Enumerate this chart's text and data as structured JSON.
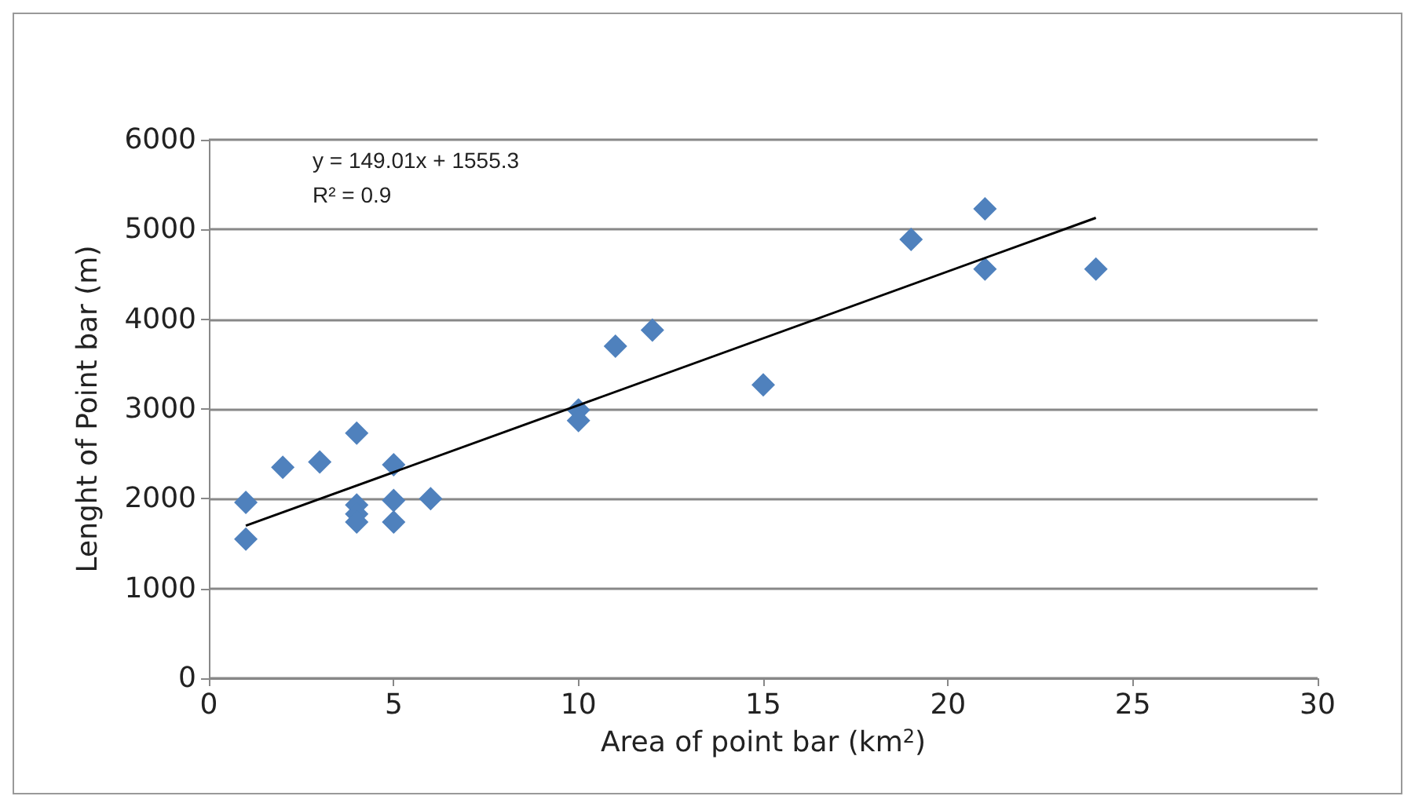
{
  "chart_data": {
    "type": "scatter",
    "xlabel": "Area of point bar (km$^{2}$)",
    "ylabel": "Lenght of Point bar (m)",
    "annotations": [
      "y = 149.01x + 1555.3",
      "R² = 0.9"
    ],
    "xlim": [
      0,
      30
    ],
    "xticks": [
      0,
      5,
      10,
      15,
      20,
      25,
      30
    ],
    "ylim": [
      0,
      6000
    ],
    "yticks": [
      0,
      1000,
      2000,
      3000,
      4000,
      5000,
      6000
    ],
    "grid": "y",
    "marker": "diamond",
    "series": [
      {
        "color": "#4f81bd",
        "x": [
          1,
          1,
          2,
          3,
          4,
          4,
          4,
          4,
          5,
          5,
          5,
          6,
          10,
          10,
          11,
          12,
          15,
          19,
          21,
          21,
          24
        ],
        "values": [
          1960,
          1550,
          2350,
          2410,
          2730,
          1930,
          1830,
          1740,
          2380,
          1980,
          1740,
          2000,
          2990,
          2870,
          3700,
          3880,
          3270,
          4890,
          5230,
          4560,
          4560
        ]
      },
      {
        "type": "line",
        "color": "#000000",
        "marker": "none",
        "x": [
          1,
          24
        ],
        "values": [
          1700,
          5130
        ]
      }
    ]
  }
}
